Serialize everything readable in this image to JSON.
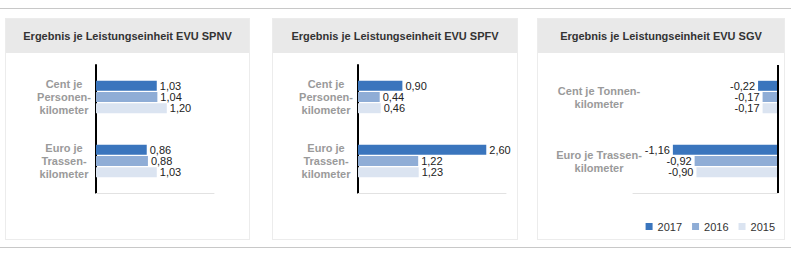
{
  "chart_data": [
    {
      "type": "bar",
      "title": "Ergebnis je Leistungseinheit EVU SPNV",
      "orientation": "horizontal",
      "categories": [
        "Cent je\nPersonen-\nkilometer",
        "Euro je\nTrassen-\nkilometer"
      ],
      "series": [
        {
          "name": "2017",
          "color": "#3a75bd",
          "values": [
            1.03,
            0.86
          ],
          "value_labels": [
            "1,03",
            "0,86"
          ]
        },
        {
          "name": "2016",
          "color": "#8fadd6",
          "values": [
            1.04,
            0.88
          ],
          "value_labels": [
            "1,04",
            "0,88"
          ]
        },
        {
          "name": "2015",
          "color": "#dbe4f1",
          "values": [
            1.2,
            1.03
          ],
          "value_labels": [
            "1,20",
            "1,03"
          ]
        }
      ],
      "xlim": [
        0,
        2
      ],
      "data_labels": true,
      "tick_labels": "y",
      "grid": false
    },
    {
      "type": "bar",
      "title": "Ergebnis je Leistungseinheit EVU SPFV",
      "orientation": "horizontal",
      "categories": [
        "Cent je\nPersonen-\nkilometer",
        "Euro je\nTrassen-\nkilometer"
      ],
      "series": [
        {
          "name": "2017",
          "color": "#3a75bd",
          "values": [
            0.9,
            2.6
          ],
          "value_labels": [
            "0,90",
            "2,60"
          ]
        },
        {
          "name": "2016",
          "color": "#8fadd6",
          "values": [
            0.44,
            1.22
          ],
          "value_labels": [
            "0,44",
            "1,22"
          ]
        },
        {
          "name": "2015",
          "color": "#dbe4f1",
          "values": [
            0.46,
            1.23
          ],
          "value_labels": [
            "0,46",
            "1,23"
          ]
        }
      ],
      "xlim": [
        0,
        3
      ],
      "data_labels": true,
      "tick_labels": "y",
      "grid": false
    },
    {
      "type": "bar",
      "title": "Ergebnis je Leistungseinheit EVU SGV",
      "orientation": "horizontal",
      "categories": [
        "Cent je Tonnen-\nkilometer",
        "Euro je Trassen-\nkilometer"
      ],
      "series": [
        {
          "name": "2017",
          "color": "#3a75bd",
          "values": [
            -0.22,
            -1.16
          ],
          "value_labels": [
            "-0,22",
            "-1,16"
          ]
        },
        {
          "name": "2016",
          "color": "#8fadd6",
          "values": [
            -0.17,
            -0.92
          ],
          "value_labels": [
            "-0,17",
            "-0,92"
          ]
        },
        {
          "name": "2015",
          "color": "#dbe4f1",
          "values": [
            -0.17,
            -0.9
          ],
          "value_labels": [
            "-0,17",
            "-0,90"
          ]
        }
      ],
      "xlim": [
        -1.6,
        0
      ],
      "data_labels": true,
      "tick_labels": "y",
      "grid": false,
      "legend": "bottom right"
    }
  ]
}
